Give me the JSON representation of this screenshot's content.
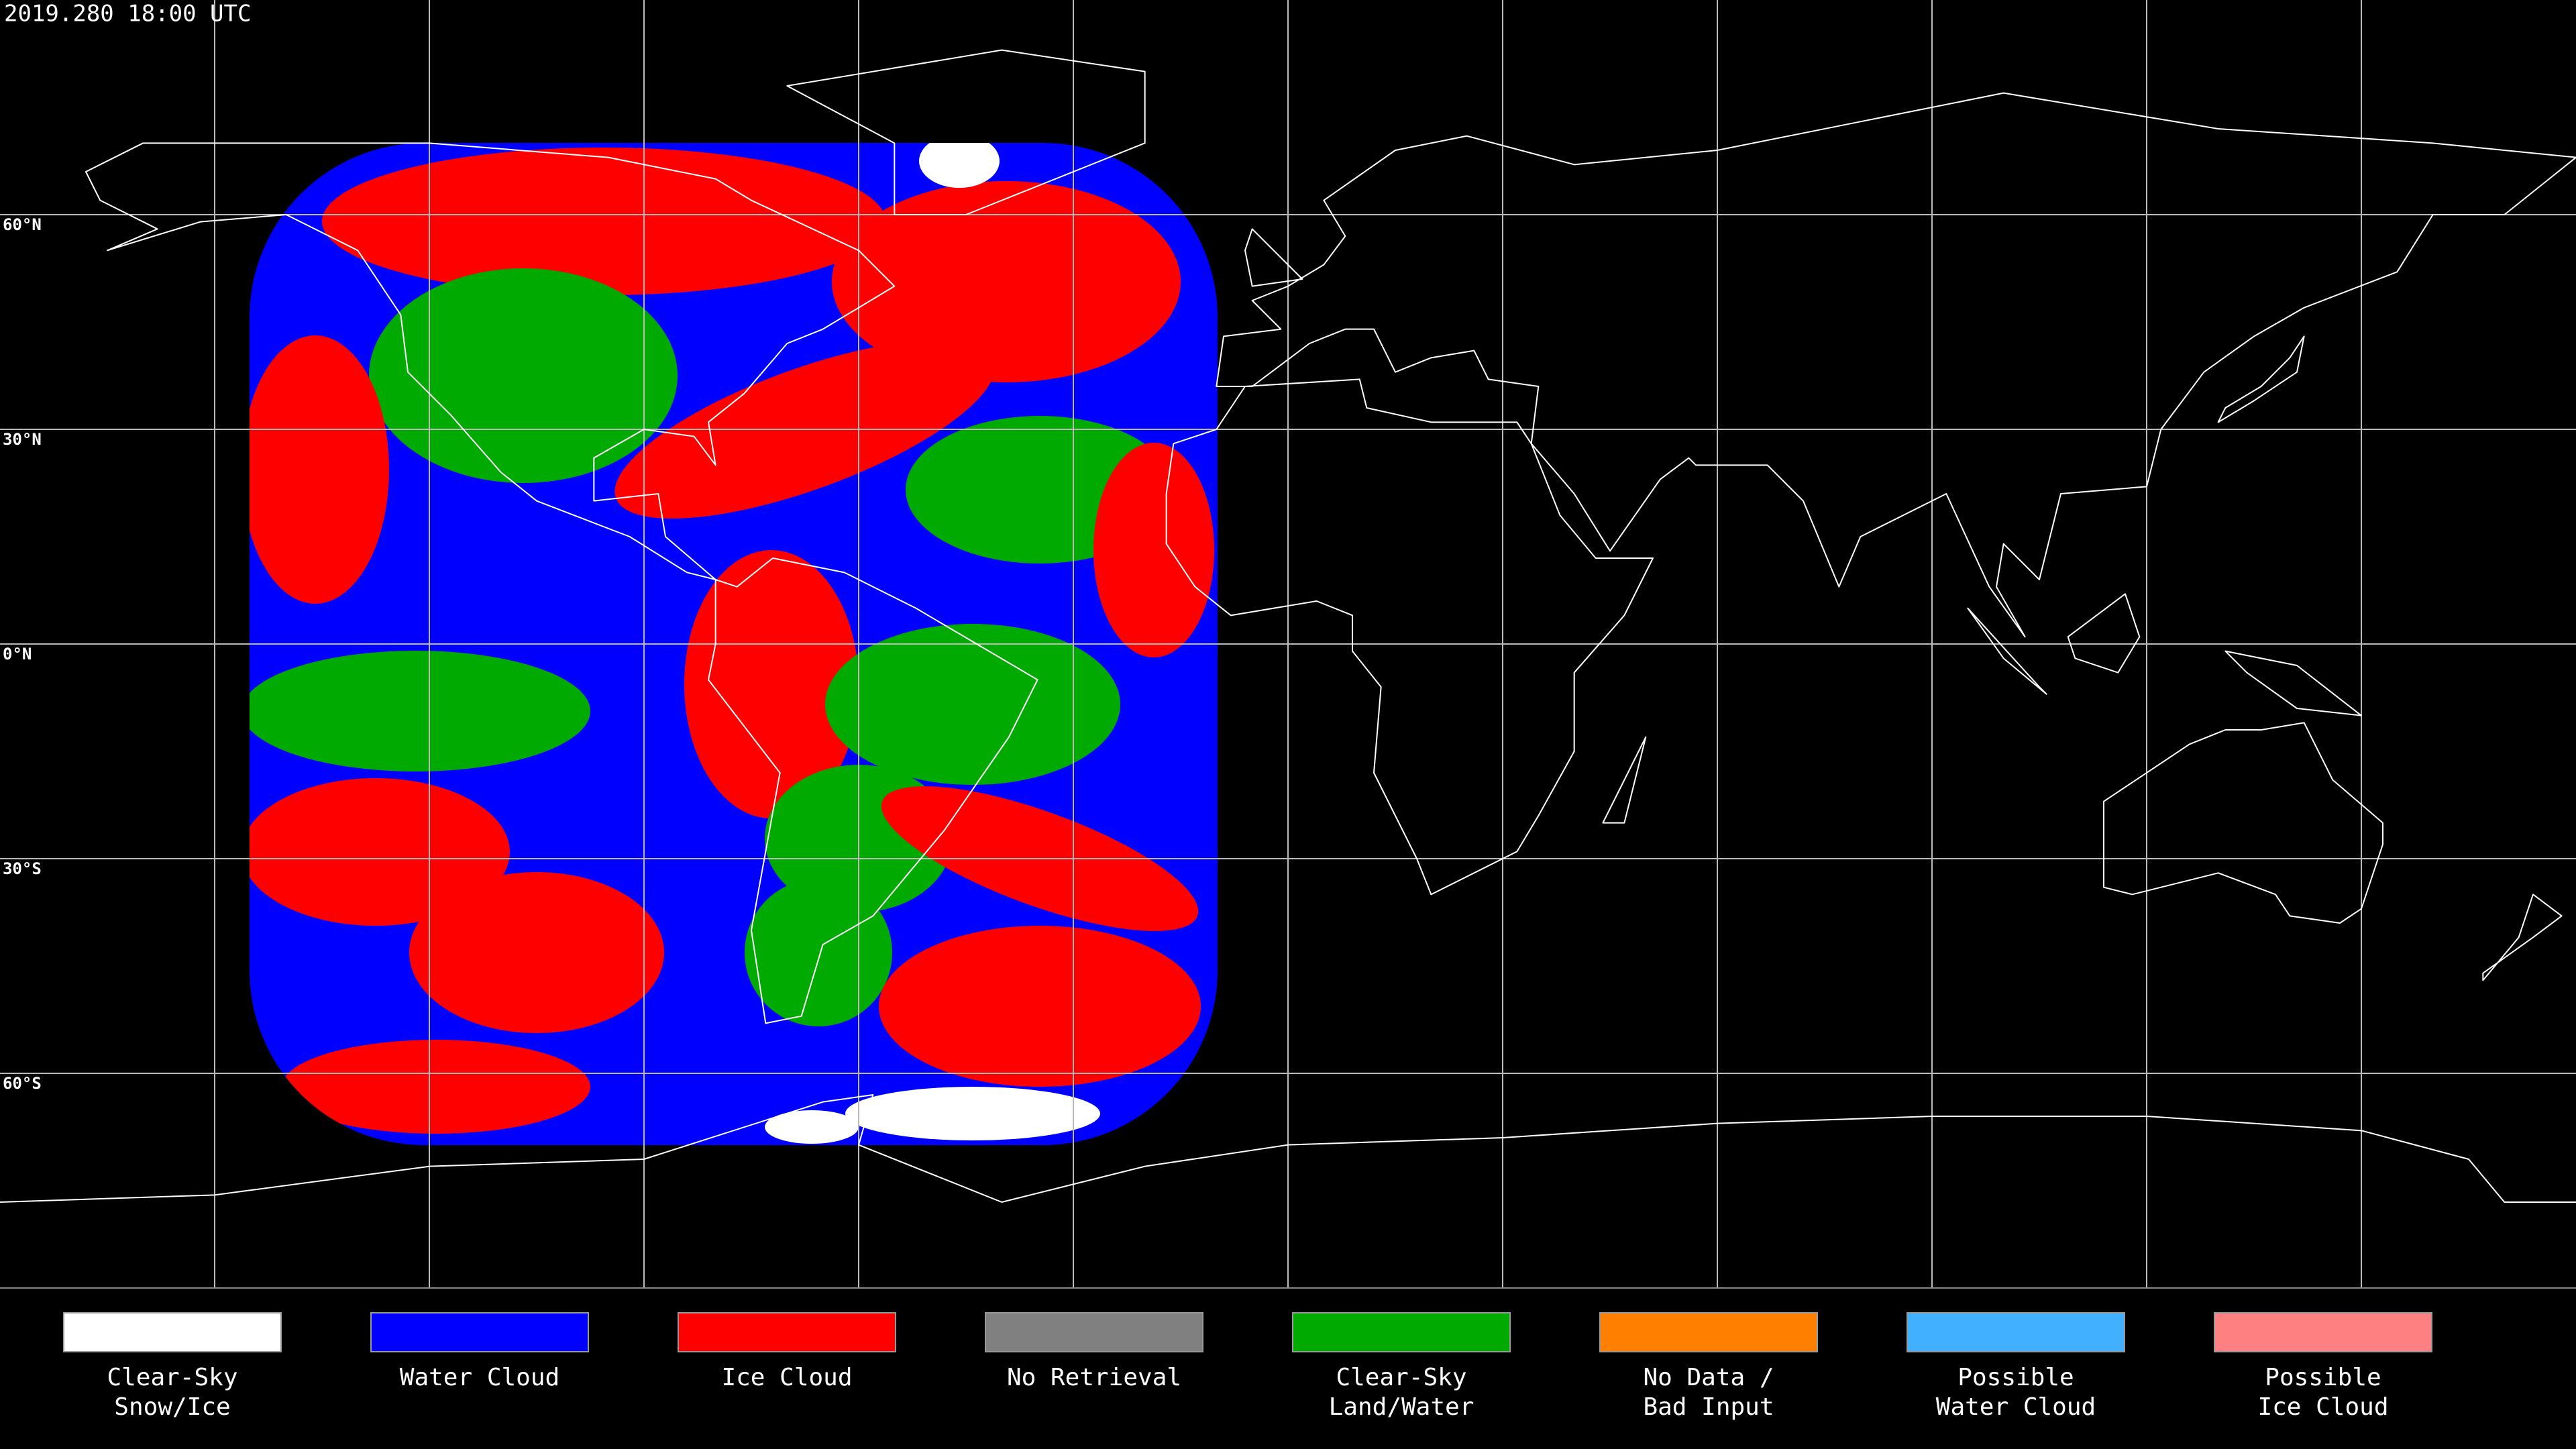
{
  "title": "2019.280 18:00 UTC",
  "latitude_labels": [
    "60°N",
    "30°N",
    "0°N",
    "30°S",
    "60°S"
  ],
  "legend": [
    {
      "label": [
        "Clear-Sky",
        "Snow/Ice"
      ],
      "color": "#ffffff"
    },
    {
      "label": [
        "Water Cloud"
      ],
      "color": "#0000ff"
    },
    {
      "label": [
        "Ice Cloud"
      ],
      "color": "#ff0000"
    },
    {
      "label": [
        "No Retrieval"
      ],
      "color": "#808080"
    },
    {
      "label": [
        "Clear-Sky",
        "Land/Water"
      ],
      "color": "#00aa00"
    },
    {
      "label": [
        "No Data /",
        "Bad Input"
      ],
      "color": "#ff8000"
    },
    {
      "label": [
        "Possible",
        "Water Cloud"
      ],
      "color": "#40b0ff"
    },
    {
      "label": [
        "Possible",
        "Ice Cloud"
      ],
      "color": "#ff8080"
    }
  ]
}
